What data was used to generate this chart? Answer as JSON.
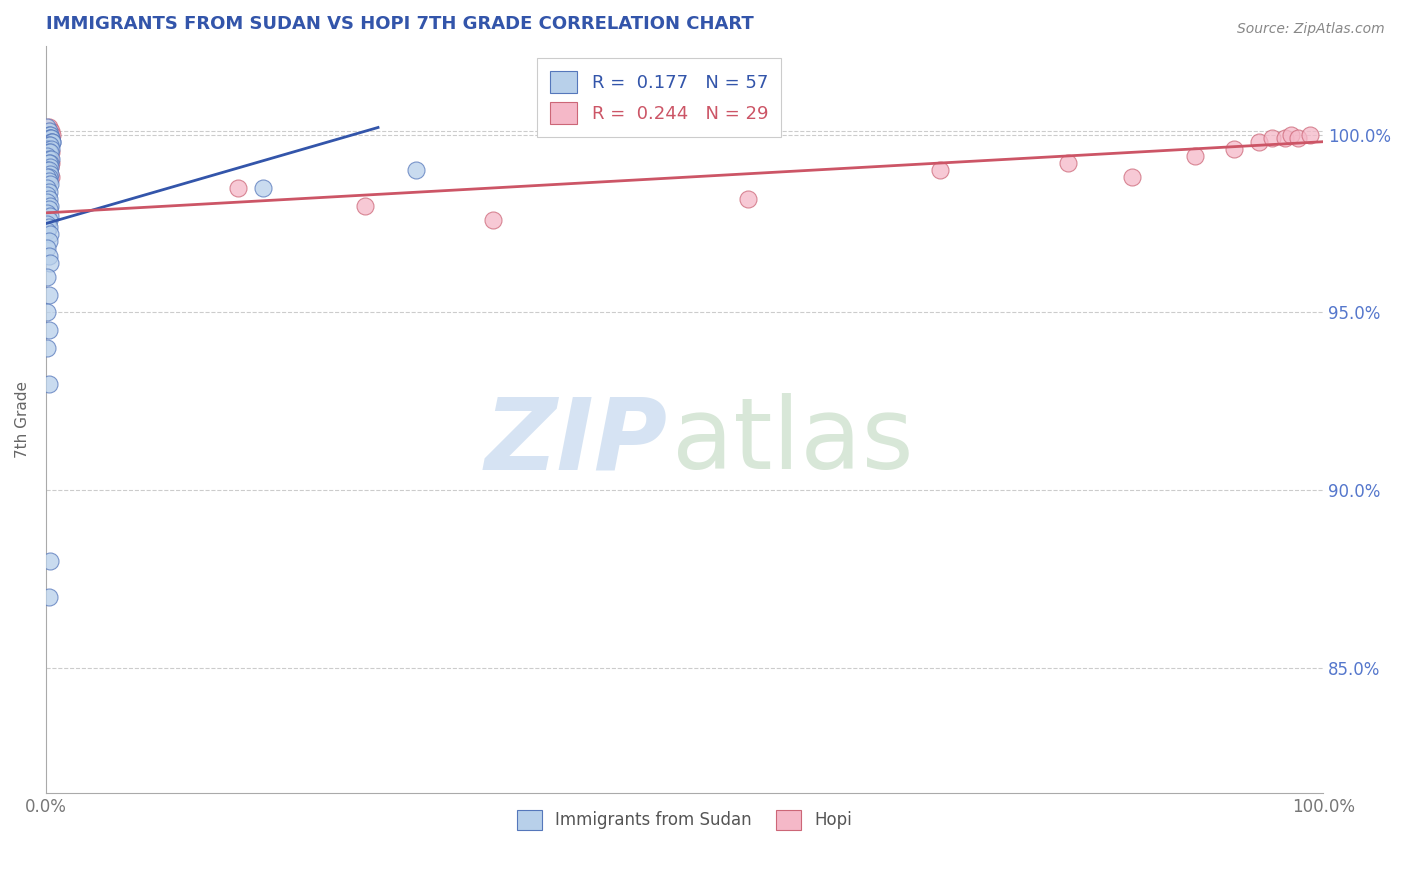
{
  "title": "IMMIGRANTS FROM SUDAN VS HOPI 7TH GRADE CORRELATION CHART",
  "source": "Source: ZipAtlas.com",
  "ylabel": "7th Grade",
  "xlim": [
    0,
    1
  ],
  "ylim": [
    0.815,
    1.025
  ],
  "ytick_labels": [
    "85.0%",
    "90.0%",
    "95.0%",
    "100.0%"
  ],
  "ytick_values": [
    0.85,
    0.9,
    0.95,
    1.0
  ],
  "blue_R": 0.177,
  "blue_N": 57,
  "pink_R": 0.244,
  "pink_N": 29,
  "blue_color": "#b8d0ea",
  "pink_color": "#f5b8c8",
  "blue_edge_color": "#5577bb",
  "pink_edge_color": "#cc6677",
  "blue_line_color": "#3355aa",
  "pink_line_color": "#cc5566",
  "legend_label_blue": "Immigrants from Sudan",
  "legend_label_pink": "Hopi",
  "background_color": "#ffffff",
  "title_color": "#3355aa",
  "blue_x": [
    0.001,
    0.002,
    0.002,
    0.003,
    0.003,
    0.003,
    0.004,
    0.004,
    0.005,
    0.005,
    0.002,
    0.003,
    0.001,
    0.004,
    0.002,
    0.003,
    0.001,
    0.002,
    0.004,
    0.003,
    0.002,
    0.003,
    0.001,
    0.002,
    0.003,
    0.002,
    0.001,
    0.002,
    0.003,
    0.001,
    0.002,
    0.001,
    0.002,
    0.001,
    0.003,
    0.002,
    0.001,
    0.003,
    0.002,
    0.001,
    0.002,
    0.001,
    0.003,
    0.002,
    0.001,
    0.002,
    0.003,
    0.001,
    0.002,
    0.001,
    0.17,
    0.002,
    0.001,
    0.002,
    0.29,
    0.003,
    0.002
  ],
  "blue_y": [
    1.002,
    1.001,
    1.0,
    1.0,
    0.999,
    0.999,
    0.999,
    0.998,
    0.998,
    0.998,
    0.997,
    0.997,
    0.996,
    0.996,
    0.995,
    0.995,
    0.994,
    0.993,
    0.993,
    0.992,
    0.992,
    0.991,
    0.99,
    0.99,
    0.989,
    0.988,
    0.988,
    0.987,
    0.986,
    0.985,
    0.984,
    0.983,
    0.982,
    0.981,
    0.98,
    0.979,
    0.978,
    0.977,
    0.976,
    0.975,
    0.974,
    0.973,
    0.972,
    0.97,
    0.968,
    0.966,
    0.964,
    0.96,
    0.955,
    0.95,
    0.985,
    0.945,
    0.94,
    0.93,
    0.99,
    0.88,
    0.87
  ],
  "pink_x": [
    0.002,
    0.003,
    0.004,
    0.005,
    0.003,
    0.004,
    0.002,
    0.003,
    0.002,
    0.004,
    0.003,
    0.15,
    0.25,
    0.003,
    0.35,
    0.004,
    0.55,
    0.004,
    0.7,
    0.8,
    0.85,
    0.9,
    0.93,
    0.95,
    0.96,
    0.97,
    0.975,
    0.98,
    0.99
  ],
  "pink_y": [
    1.002,
    1.001,
    1.001,
    1.0,
    0.999,
    0.999,
    0.998,
    0.997,
    0.996,
    0.995,
    0.993,
    0.985,
    0.98,
    0.991,
    0.976,
    0.992,
    0.982,
    0.988,
    0.99,
    0.992,
    0.988,
    0.994,
    0.996,
    0.998,
    0.999,
    0.999,
    1.0,
    0.999,
    1.0
  ],
  "blue_line_x0": 0.0,
  "blue_line_y0": 0.975,
  "blue_line_x1": 0.26,
  "blue_line_y1": 1.002,
  "pink_line_x0": 0.0,
  "pink_line_y0": 0.978,
  "pink_line_x1": 1.0,
  "pink_line_y1": 0.998
}
